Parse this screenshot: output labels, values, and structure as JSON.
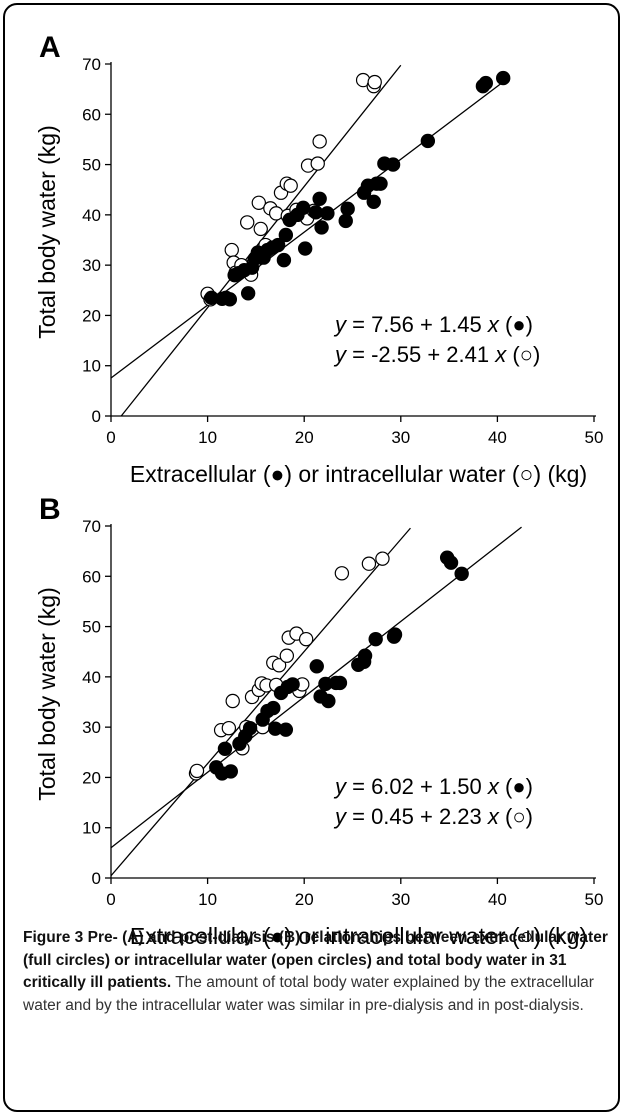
{
  "chart_data": [
    {
      "type": "scatter",
      "panel": "A",
      "xlabel": "Extracellular (●) or intracellular water (○) (kg)",
      "ylabel": "Total body water (kg)",
      "xlim": [
        0,
        50
      ],
      "ylim": [
        0,
        70
      ],
      "xticks": [
        "0",
        "10",
        "20",
        "30",
        "40",
        "50"
      ],
      "yticks": [
        "0",
        "10",
        "20",
        "30",
        "40",
        "50",
        "60",
        "70"
      ],
      "grid": false,
      "series": [
        {
          "marker": "filled",
          "points": [
            [
              10.4,
              23.5
            ],
            [
              11.5,
              23.3
            ],
            [
              11.9,
              23.5
            ],
            [
              12.3,
              23.2
            ],
            [
              12.8,
              28
            ],
            [
              13.2,
              28.4
            ],
            [
              13.8,
              29
            ],
            [
              14.2,
              24.4
            ],
            [
              14.6,
              29.5
            ],
            [
              14.9,
              31.3
            ],
            [
              15.2,
              32.5
            ],
            [
              15.8,
              31.5
            ],
            [
              16.2,
              33
            ],
            [
              16.7,
              33.5
            ],
            [
              17.3,
              34
            ],
            [
              17.9,
              31
            ],
            [
              18.1,
              36
            ],
            [
              18.5,
              39
            ],
            [
              19.3,
              40
            ],
            [
              19.9,
              41.4
            ],
            [
              20.1,
              33.3
            ],
            [
              21.2,
              40.5
            ],
            [
              21.6,
              43.2
            ],
            [
              21.8,
              37.5
            ],
            [
              22.4,
              40.3
            ],
            [
              24.3,
              38.8
            ],
            [
              24.5,
              41.2
            ],
            [
              26.2,
              44.4
            ],
            [
              26.6,
              45.8
            ],
            [
              27.2,
              42.6
            ],
            [
              27.5,
              46.2
            ],
            [
              27.9,
              46.2
            ],
            [
              28.3,
              50.2
            ],
            [
              29.2,
              50
            ],
            [
              32.8,
              54.7
            ],
            [
              38.5,
              65.6
            ],
            [
              38.8,
              66.2
            ],
            [
              40.6,
              67.2
            ]
          ],
          "fit": {
            "intercept": 7.56,
            "slope": 1.45,
            "x_range": [
              0,
              41
            ]
          }
        },
        {
          "marker": "open",
          "points": [
            [
              10,
              24.3
            ],
            [
              10.3,
              23.2
            ],
            [
              12.5,
              33
            ],
            [
              12.7,
              30.5
            ],
            [
              12.9,
              28.5
            ],
            [
              13.5,
              30
            ],
            [
              14.1,
              38.5
            ],
            [
              14.5,
              28.1
            ],
            [
              14.8,
              30.5
            ],
            [
              15.3,
              42.4
            ],
            [
              15.5,
              37.2
            ],
            [
              16,
              34
            ],
            [
              16.5,
              41.3
            ],
            [
              17.1,
              40.3
            ],
            [
              17.6,
              44.4
            ],
            [
              18.2,
              46.2
            ],
            [
              18.6,
              45.8
            ],
            [
              18.3,
              39.8
            ],
            [
              19.2,
              41
            ],
            [
              20.3,
              39.3
            ],
            [
              20.4,
              49.8
            ],
            [
              21,
              40.8
            ],
            [
              21.4,
              50.2
            ],
            [
              21.6,
              54.6
            ],
            [
              26.1,
              66.8
            ],
            [
              27.2,
              65.6
            ],
            [
              27.3,
              66.4
            ]
          ],
          "fit": {
            "intercept": -2.55,
            "slope": 2.41,
            "x_range": [
              1,
              30
            ]
          }
        }
      ],
      "annotations": [
        "= 7.56 + 1.45",
        "= -2.55 + 2.41"
      ]
    },
    {
      "type": "scatter",
      "panel": "B",
      "xlabel": "Extracellular (●) or intracellular water (○) (kg)",
      "ylabel": "Total body water (kg)",
      "xlim": [
        0,
        50
      ],
      "ylim": [
        0,
        70
      ],
      "xticks": [
        "0",
        "10",
        "20",
        "30",
        "40",
        "50"
      ],
      "yticks": [
        "0",
        "10",
        "20",
        "30",
        "40",
        "50",
        "60",
        "70"
      ],
      "grid": false,
      "series": [
        {
          "marker": "filled",
          "points": [
            [
              10.9,
              22
            ],
            [
              11.5,
              20.8
            ],
            [
              11.8,
              25.7
            ],
            [
              12.4,
              21.2
            ],
            [
              13.3,
              26.7
            ],
            [
              13.9,
              28.2
            ],
            [
              14.4,
              29.8
            ],
            [
              15.7,
              31.5
            ],
            [
              16.2,
              33.2
            ],
            [
              16.8,
              33.8
            ],
            [
              17,
              29.7
            ],
            [
              17.6,
              36.8
            ],
            [
              18.1,
              29.5
            ],
            [
              18.3,
              38
            ],
            [
              18.8,
              38.5
            ],
            [
              21.3,
              42.1
            ],
            [
              21.7,
              36.1
            ],
            [
              22.2,
              38.6
            ],
            [
              22.5,
              35.2
            ],
            [
              23.3,
              38.8
            ],
            [
              23.7,
              38.8
            ],
            [
              25.6,
              42.4
            ],
            [
              26.2,
              43
            ],
            [
              26.3,
              44.2
            ],
            [
              27.4,
              47.5
            ],
            [
              29.3,
              48
            ],
            [
              29.4,
              48.4
            ],
            [
              34.8,
              63.7
            ],
            [
              35.2,
              62.7
            ],
            [
              36.3,
              60.5
            ]
          ],
          "fit": {
            "intercept": 6.02,
            "slope": 1.5,
            "x_range": [
              0,
              42.5
            ]
          }
        },
        {
          "marker": "open",
          "points": [
            [
              8.8,
              20.8
            ],
            [
              8.9,
              21.3
            ],
            [
              11.4,
              29.4
            ],
            [
              12.2,
              29.8
            ],
            [
              12.6,
              35.2
            ],
            [
              13.6,
              25.8
            ],
            [
              14,
              30
            ],
            [
              14.6,
              36
            ],
            [
              15.3,
              37.4
            ],
            [
              15.6,
              38.7
            ],
            [
              15.7,
              30
            ],
            [
              16.1,
              38.3
            ],
            [
              16.8,
              42.8
            ],
            [
              17.1,
              38.4
            ],
            [
              17.4,
              42.3
            ],
            [
              18.2,
              44.2
            ],
            [
              18.4,
              47.8
            ],
            [
              19.2,
              48.6
            ],
            [
              19.5,
              37.2
            ],
            [
              19.8,
              38.5
            ],
            [
              20.2,
              47.5
            ],
            [
              23.9,
              60.6
            ],
            [
              26.7,
              62.5
            ],
            [
              28.1,
              63.5
            ]
          ],
          "fit": {
            "intercept": 0.45,
            "slope": 2.23,
            "x_range": [
              0,
              31
            ]
          }
        }
      ],
      "annotations": [
        "= 6.02 + 1.50",
        "= 0.45 + 2.23"
      ]
    }
  ],
  "caption": {
    "figure_label": "Figure 3",
    "bold_text": "Pre- (A) and post-dialysis (B) relationships between extracellular water (full circles) or intracellular water (open circles) and total body water in 31 critically ill patients.",
    "body_text": "The amount of total body water explained by the extracellular water and by the intracellular water was similar in pre-dialysis and in post-dialysis."
  }
}
